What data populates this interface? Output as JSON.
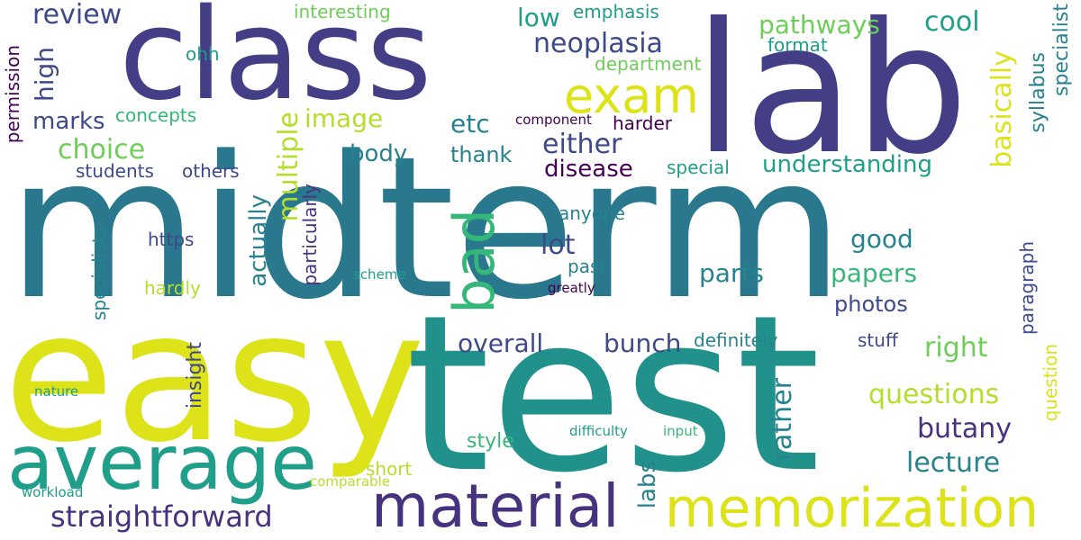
{
  "palette": {
    "dark_purple": "#440154",
    "indigo": "#482878",
    "blue_purple": "#3e4989",
    "blue": "#31688e",
    "teal": "#26828e",
    "green_teal": "#1f9e89",
    "green": "#35b779",
    "lime": "#6ece58",
    "yellow_green": "#b5de2b",
    "yellow": "#dde318"
  },
  "words": [
    {
      "text": "midterm",
      "color": "#2a788e"
    },
    {
      "text": "easy",
      "color": "#dde318"
    },
    {
      "text": "test",
      "color": "#21918c"
    },
    {
      "text": "lab",
      "color": "#433e85"
    },
    {
      "text": "class",
      "color": "#433e85"
    },
    {
      "text": "average",
      "color": "#1f9e89"
    },
    {
      "text": "material",
      "color": "#46327e"
    },
    {
      "text": "memorization",
      "color": "#dde318"
    },
    {
      "text": "exam",
      "color": "#dde318"
    },
    {
      "text": "bad",
      "color": "#35b779"
    },
    {
      "text": "straightforward",
      "color": "#46327e"
    },
    {
      "text": "review",
      "color": "#3e4989"
    },
    {
      "text": "neoplasia",
      "color": "#3e4989"
    },
    {
      "text": "low",
      "color": "#1f9e89"
    },
    {
      "text": "emphasis",
      "color": "#1f9e89"
    },
    {
      "text": "interesting",
      "color": "#6ece58"
    },
    {
      "text": "pathways",
      "color": "#6ece58"
    },
    {
      "text": "cool",
      "color": "#1f9e89"
    },
    {
      "text": "format",
      "color": "#1f9e89"
    },
    {
      "text": "department",
      "color": "#6ece58"
    },
    {
      "text": "ohh",
      "color": "#1f9e89"
    },
    {
      "text": "specialist",
      "color": "#26828e"
    },
    {
      "text": "syllabus",
      "color": "#26828e"
    },
    {
      "text": "high",
      "color": "#3e4989"
    },
    {
      "text": "basically",
      "color": "#dde318"
    },
    {
      "text": "marks",
      "color": "#3e4989"
    },
    {
      "text": "concepts",
      "color": "#35b779"
    },
    {
      "text": "image",
      "color": "#b5de2b"
    },
    {
      "text": "etc",
      "color": "#26828e"
    },
    {
      "text": "component",
      "color": "#440154"
    },
    {
      "text": "harder",
      "color": "#440154"
    },
    {
      "text": "choice",
      "color": "#6ece58"
    },
    {
      "text": "either",
      "color": "#3e4989"
    },
    {
      "text": "body",
      "color": "#26828e"
    },
    {
      "text": "thank",
      "color": "#26828e"
    },
    {
      "text": "disease",
      "color": "#440154"
    },
    {
      "text": "special",
      "color": "#1f9e89"
    },
    {
      "text": "understanding",
      "color": "#1f9e89"
    },
    {
      "text": "students",
      "color": "#3e4989"
    },
    {
      "text": "others",
      "color": "#3e4989"
    },
    {
      "text": "permission",
      "color": "#440154"
    },
    {
      "text": "multiple",
      "color": "#b5de2b"
    },
    {
      "text": "particularly",
      "color": "#46327e"
    },
    {
      "text": "anyone",
      "color": "#26828e"
    },
    {
      "text": "good",
      "color": "#26828e"
    },
    {
      "text": "https",
      "color": "#3e4989"
    },
    {
      "text": "lot",
      "color": "#3e4989"
    },
    {
      "text": "past",
      "color": "#26828e"
    },
    {
      "text": "parts",
      "color": "#26828e"
    },
    {
      "text": "papers",
      "color": "#35b779"
    },
    {
      "text": "specialists",
      "color": "#26828e"
    },
    {
      "text": "actually",
      "color": "#26828e"
    },
    {
      "text": "hardly",
      "color": "#b5de2b"
    },
    {
      "text": "scheme",
      "color": "#1f9e89"
    },
    {
      "text": "greatly",
      "color": "#440154"
    },
    {
      "text": "photos",
      "color": "#3e4989"
    },
    {
      "text": "paragraph",
      "color": "#3e4989"
    },
    {
      "text": "overall",
      "color": "#3e4989"
    },
    {
      "text": "bunch",
      "color": "#3e4989"
    },
    {
      "text": "definitely",
      "color": "#26828e"
    },
    {
      "text": "stuff",
      "color": "#3e4989"
    },
    {
      "text": "right",
      "color": "#6ece58"
    },
    {
      "text": "insight",
      "color": "#3e4989"
    },
    {
      "text": "nature",
      "color": "#1f9e89"
    },
    {
      "text": "rather",
      "color": "#26828e"
    },
    {
      "text": "questions",
      "color": "#b5de2b"
    },
    {
      "text": "question",
      "color": "#dde318"
    },
    {
      "text": "butany",
      "color": "#46327e"
    },
    {
      "text": "style",
      "color": "#35b779"
    },
    {
      "text": "difficulty",
      "color": "#1f9e89"
    },
    {
      "text": "input",
      "color": "#35b779"
    },
    {
      "text": "labs",
      "color": "#26828e"
    },
    {
      "text": "lecture",
      "color": "#26828e"
    },
    {
      "text": "short",
      "color": "#b5de2b"
    },
    {
      "text": "workload",
      "color": "#1f9e89"
    },
    {
      "text": "comparable",
      "color": "#b5de2b"
    }
  ]
}
